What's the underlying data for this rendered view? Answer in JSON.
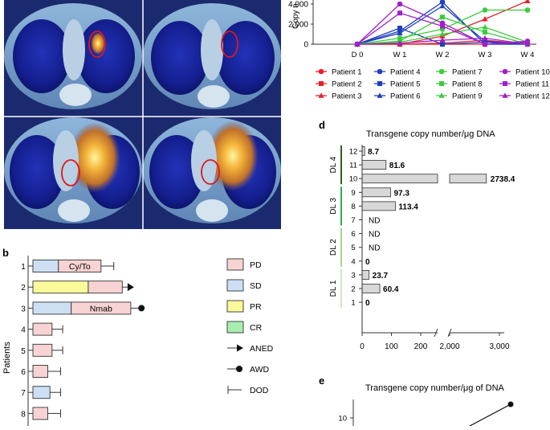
{
  "chart_data": [
    {
      "type": "line",
      "panel": "",
      "ylabel": "Copy n",
      "categories": [
        "D 0",
        "W 1",
        "W 2",
        "W 3",
        "W 4"
      ],
      "yticks": [
        "0",
        "2,000",
        "4,000"
      ],
      "ylim": [
        0,
        4400
      ],
      "series": [
        {
          "name": "Patient 1",
          "color": "#e8202a",
          "marker": "circle",
          "values": [
            0,
            0,
            0,
            0,
            0
          ]
        },
        {
          "name": "Patient 2",
          "color": "#e8202a",
          "marker": "square",
          "values": [
            0,
            0,
            100,
            400,
            0
          ]
        },
        {
          "name": "Patient 3",
          "color": "#e8202a",
          "marker": "triangle",
          "values": [
            0,
            0,
            800,
            2500,
            4300
          ]
        },
        {
          "name": "Patient 4",
          "color": "#1f3fbf",
          "marker": "circle",
          "values": [
            0,
            1300,
            4200,
            0,
            0
          ]
        },
        {
          "name": "Patient 5",
          "color": "#1f3fbf",
          "marker": "square",
          "values": [
            0,
            1600,
            0,
            200,
            0
          ]
        },
        {
          "name": "Patient 6",
          "color": "#1f3fbf",
          "marker": "triangle",
          "values": [
            0,
            1100,
            3800,
            300,
            0
          ]
        },
        {
          "name": "Patient 7",
          "color": "#3ccc3c",
          "marker": "circle",
          "values": [
            0,
            600,
            1500,
            3400,
            3400
          ]
        },
        {
          "name": "Patient 8",
          "color": "#3ccc3c",
          "marker": "square",
          "values": [
            0,
            300,
            2700,
            1200,
            0
          ]
        },
        {
          "name": "Patient 9",
          "color": "#3ccc3c",
          "marker": "triangle",
          "values": [
            0,
            200,
            1000,
            1700,
            200
          ]
        },
        {
          "name": "Patient 10",
          "color": "#a020c8",
          "marker": "circle",
          "values": [
            0,
            4000,
            2100,
            0,
            300
          ]
        },
        {
          "name": "Patient 11",
          "color": "#a020c8",
          "marker": "square",
          "values": [
            0,
            3100,
            1800,
            0,
            200
          ]
        },
        {
          "name": "Patient 12",
          "color": "#a020c8",
          "marker": "triangle",
          "values": [
            0,
            100,
            400,
            600,
            0
          ]
        }
      ]
    },
    {
      "type": "bar",
      "panel": "b",
      "ylabel": "Patients",
      "patients": [
        {
          "id": "1",
          "segments": [
            {
              "kind": "SD",
              "start": 0,
              "end": 1.2
            },
            {
              "kind": "PD",
              "start": 1.2,
              "end": 3.2,
              "label": "Cy/To"
            }
          ],
          "end_marker": "DOD",
          "marker_at": 3.8
        },
        {
          "id": "2",
          "segments": [
            {
              "kind": "PR",
              "start": 0,
              "end": 2.6
            },
            {
              "kind": "PD",
              "start": 2.6,
              "end": 4.2
            }
          ],
          "end_marker": "ANED",
          "marker_at": 4.6
        },
        {
          "id": "3",
          "segments": [
            {
              "kind": "SD",
              "start": 0,
              "end": 1.8
            },
            {
              "kind": "PD",
              "start": 1.8,
              "end": 4.6,
              "label": "Nmab"
            }
          ],
          "end_marker": "AWD",
          "marker_at": 5.1
        },
        {
          "id": "4",
          "segments": [
            {
              "kind": "PD",
              "start": 0,
              "end": 0.9
            }
          ],
          "end_marker": "DOD",
          "marker_at": 1.4
        },
        {
          "id": "5",
          "segments": [
            {
              "kind": "PD",
              "start": 0,
              "end": 0.9
            }
          ],
          "end_marker": "DOD",
          "marker_at": 1.4
        },
        {
          "id": "6",
          "segments": [
            {
              "kind": "PD",
              "start": 0,
              "end": 0.7
            }
          ],
          "end_marker": "DOD",
          "marker_at": 1.3
        },
        {
          "id": "7",
          "segments": [
            {
              "kind": "SD",
              "start": 0,
              "end": 0.8
            }
          ],
          "end_marker": "DOD",
          "marker_at": 1.3
        },
        {
          "id": "8",
          "segments": [
            {
              "kind": "PD",
              "start": 0,
              "end": 0.7
            }
          ],
          "end_marker": "DOD",
          "marker_at": 1.3
        }
      ],
      "legend": [
        {
          "label": "PD",
          "kind": "box",
          "color": "#f8d3d3"
        },
        {
          "label": "SD",
          "kind": "box",
          "color": "#cde0f3"
        },
        {
          "label": "PR",
          "kind": "box",
          "color": "#fafa9a"
        },
        {
          "label": "CR",
          "kind": "box",
          "color": "#a8eeb0"
        },
        {
          "label": "ANED",
          "kind": "arrow"
        },
        {
          "label": "AWD",
          "kind": "dot"
        },
        {
          "label": "DOD",
          "kind": "bar"
        }
      ]
    },
    {
      "type": "bar",
      "panel": "d",
      "title": "Transgene copy number/μg DNA",
      "xticks": [
        "0",
        "100",
        "200",
        "2,000",
        "3,000"
      ],
      "groups": [
        {
          "label": "DL 4",
          "color": "#2f5f1e",
          "rows": [
            "12",
            "11",
            "10"
          ]
        },
        {
          "label": "DL 3",
          "color": "#2fae4a",
          "rows": [
            "9",
            "8",
            "7"
          ]
        },
        {
          "label": "DL 2",
          "color": "#9fd98a",
          "rows": [
            "6",
            "5",
            "4"
          ]
        },
        {
          "label": "DL 1",
          "color": "#cfe9c3",
          "rows": [
            "3",
            "2",
            "1"
          ]
        }
      ],
      "bars": [
        {
          "patient": "12",
          "value": 8.7,
          "label": "8.7"
        },
        {
          "patient": "11",
          "value": 81.6,
          "label": "81.6"
        },
        {
          "patient": "10",
          "value": 2738.4,
          "label": "2738.4"
        },
        {
          "patient": "9",
          "value": 97.3,
          "label": "97.3"
        },
        {
          "patient": "8",
          "value": 113.4,
          "label": "113.4"
        },
        {
          "patient": "7",
          "value": null,
          "label": "ND"
        },
        {
          "patient": "6",
          "value": null,
          "label": "ND"
        },
        {
          "patient": "5",
          "value": null,
          "label": "ND"
        },
        {
          "patient": "4",
          "value": 0,
          "label": "0"
        },
        {
          "patient": "3",
          "value": 23.7,
          "label": "23.7"
        },
        {
          "patient": "2",
          "value": 60.4,
          "label": "60.4"
        },
        {
          "patient": "1",
          "value": 0,
          "label": "0"
        }
      ]
    },
    {
      "type": "line",
      "panel": "e",
      "title": "Transgene copy number/μg of DNA",
      "yticks": [
        "10"
      ]
    }
  ]
}
